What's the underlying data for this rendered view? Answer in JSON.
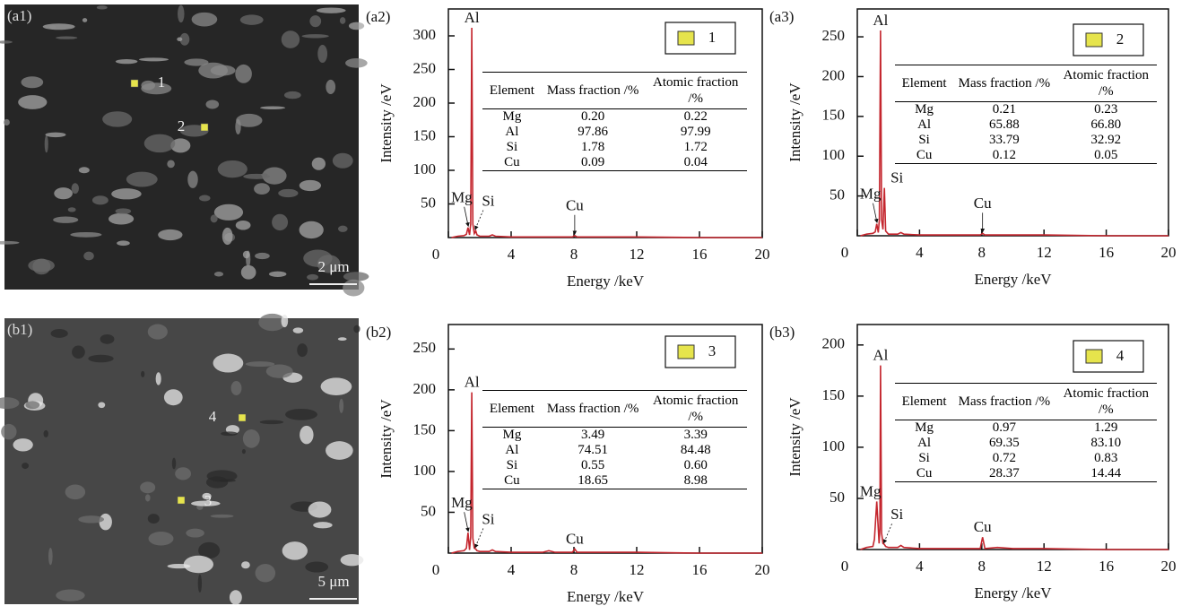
{
  "images": [
    {
      "label": "(a1)",
      "scale_bar": "2 μm",
      "points": [
        "1",
        "2"
      ]
    },
    {
      "label": "(b1)",
      "scale_bar": "5 μm",
      "points": [
        "4",
        "3"
      ]
    }
  ],
  "chart_data": [
    {
      "type": "line",
      "label": "(a2)",
      "xlabel": "Energy /keV",
      "ylabel": "Intensity /eV",
      "xlim": [
        0,
        20
      ],
      "xticks": [
        0,
        4,
        8,
        12,
        16,
        20
      ],
      "ylim": [
        0,
        340
      ],
      "yticks": [
        50,
        100,
        150,
        200,
        250,
        300
      ],
      "series": [
        {
          "name": "1",
          "color": "#c4262e",
          "marker_color": "#e6e44c",
          "x": [
            0.2,
            0.6,
            1.0,
            1.15,
            1.25,
            1.35,
            1.42,
            1.49,
            1.56,
            1.65,
            1.74,
            1.82,
            2.0,
            2.6,
            2.8,
            3.0,
            4,
            7.9,
            8.05,
            8.2,
            12,
            16,
            20
          ],
          "values": [
            0,
            2,
            3,
            5,
            15,
            4,
            20,
            312,
            20,
            6,
            10,
            4,
            2,
            2,
            4,
            2,
            1,
            1,
            3,
            1,
            1,
            0,
            0
          ]
        }
      ],
      "annotations": [
        {
          "text": "Al",
          "x": 1.49,
          "arrow": false
        },
        {
          "text": "Mg",
          "x": 1.25,
          "arrow": true
        },
        {
          "text": "Si",
          "x": 1.74,
          "arrow": true
        },
        {
          "text": "Cu",
          "x": 8.05,
          "arrow": true
        }
      ],
      "table": {
        "header": [
          "Element",
          "Mass fraction /%",
          "Atomic fraction /%"
        ],
        "rows": [
          [
            "Mg",
            "0.20",
            "0.22"
          ],
          [
            "Al",
            "97.86",
            "97.99"
          ],
          [
            "Si",
            "1.78",
            "1.72"
          ],
          [
            "Cu",
            "0.09",
            "0.04"
          ]
        ]
      }
    },
    {
      "type": "line",
      "label": "(a3)",
      "xlabel": "Energy /keV",
      "ylabel": "Intensity /eV",
      "xlim": [
        0,
        20
      ],
      "xticks": [
        0,
        4,
        8,
        12,
        16,
        20
      ],
      "ylim": [
        0,
        285
      ],
      "yticks": [
        50,
        100,
        150,
        200,
        250
      ],
      "series": [
        {
          "name": "2",
          "color": "#c4262e",
          "marker_color": "#e6e44c",
          "x": [
            0.2,
            0.6,
            1.0,
            1.15,
            1.25,
            1.35,
            1.42,
            1.49,
            1.56,
            1.65,
            1.74,
            1.82,
            2.0,
            2.6,
            2.8,
            3.0,
            4,
            7.9,
            8.05,
            8.2,
            12,
            16,
            20
          ],
          "values": [
            0,
            2,
            3,
            5,
            15,
            4,
            20,
            258,
            20,
            8,
            60,
            6,
            2,
            2,
            4,
            2,
            1,
            1,
            3,
            1,
            1,
            0,
            0
          ]
        }
      ],
      "annotations": [
        {
          "text": "Al",
          "x": 1.49,
          "arrow": false
        },
        {
          "text": "Mg",
          "x": 1.25,
          "arrow": true
        },
        {
          "text": "Si",
          "x": 1.74,
          "arrow": false
        },
        {
          "text": "Cu",
          "x": 8.05,
          "arrow": true
        }
      ],
      "table": {
        "header": [
          "Element",
          "Mass fraction /%",
          "Atomic fraction /%"
        ],
        "rows": [
          [
            "Mg",
            "0.21",
            "0.23"
          ],
          [
            "Al",
            "65.88",
            "66.80"
          ],
          [
            "Si",
            "33.79",
            "32.92"
          ],
          [
            "Cu",
            "0.12",
            "0.05"
          ]
        ]
      }
    },
    {
      "type": "line",
      "label": "(b2)",
      "xlabel": "Energy /keV",
      "ylabel": "Intensity /eV",
      "xlim": [
        0,
        20
      ],
      "xticks": [
        0,
        4,
        8,
        12,
        16,
        20
      ],
      "ylim": [
        0,
        280
      ],
      "yticks": [
        50,
        100,
        150,
        200,
        250
      ],
      "series": [
        {
          "name": "3",
          "color": "#c4262e",
          "marker_color": "#e6e44c",
          "x": [
            0.2,
            0.6,
            1.0,
            1.15,
            1.25,
            1.35,
            1.42,
            1.49,
            1.56,
            1.65,
            1.74,
            1.82,
            2.0,
            2.6,
            2.8,
            3.0,
            4,
            6.0,
            6.4,
            6.8,
            7.9,
            8.05,
            8.2,
            12,
            16,
            20
          ],
          "values": [
            0,
            2,
            3,
            6,
            25,
            4,
            20,
            197,
            18,
            6,
            5,
            3,
            2,
            2,
            4,
            2,
            1,
            1,
            3,
            1,
            1,
            5,
            1,
            1,
            0,
            0
          ]
        }
      ],
      "annotations": [
        {
          "text": "Al",
          "x": 1.49,
          "arrow": false
        },
        {
          "text": "Mg",
          "x": 1.25,
          "arrow": true
        },
        {
          "text": "Si",
          "x": 1.74,
          "arrow": true
        },
        {
          "text": "Cu",
          "x": 8.05,
          "arrow": false
        }
      ],
      "table": {
        "header": [
          "Element",
          "Mass fraction /%",
          "Atomic fraction /%"
        ],
        "rows": [
          [
            "Mg",
            "3.49",
            "3.39"
          ],
          [
            "Al",
            "74.51",
            "84.48"
          ],
          [
            "Si",
            "0.55",
            "0.60"
          ],
          [
            "Cu",
            "18.65",
            "8.98"
          ]
        ]
      }
    },
    {
      "type": "line",
      "label": "(b3)",
      "xlabel": "Energy /keV",
      "ylabel": "Intensity /eV",
      "xlim": [
        0,
        20
      ],
      "xticks": [
        0,
        4,
        8,
        12,
        16,
        20
      ],
      "ylim": [
        0,
        220
      ],
      "yticks": [
        50,
        100,
        150,
        200
      ],
      "series": [
        {
          "name": "4",
          "color": "#c4262e",
          "marker_color": "#e6e44c",
          "x": [
            0.2,
            0.6,
            1.0,
            1.1,
            1.25,
            1.4,
            1.45,
            1.49,
            1.56,
            1.65,
            1.74,
            1.82,
            2.0,
            2.6,
            2.8,
            3.0,
            4,
            7.9,
            8.05,
            8.2,
            9.0,
            10.0,
            12,
            16,
            20
          ],
          "values": [
            0,
            2,
            3,
            10,
            47,
            6,
            20,
            180,
            16,
            6,
            5,
            3,
            2,
            2,
            4,
            2,
            1,
            1,
            12,
            1,
            2,
            1,
            1,
            0,
            0
          ]
        }
      ],
      "annotations": [
        {
          "text": "Al",
          "x": 1.49,
          "arrow": false
        },
        {
          "text": "Mg",
          "x": 1.25,
          "arrow": false
        },
        {
          "text": "Si",
          "x": 1.74,
          "arrow": true
        },
        {
          "text": "Cu",
          "x": 8.05,
          "arrow": false
        }
      ],
      "table": {
        "header": [
          "Element",
          "Mass fraction /%",
          "Atomic fraction /%"
        ],
        "rows": [
          [
            "Mg",
            "0.97",
            "1.29"
          ],
          [
            "Al",
            "69.35",
            "83.10"
          ],
          [
            "Si",
            "0.72",
            "0.83"
          ],
          [
            "Cu",
            "28.37",
            "14.44"
          ]
        ]
      }
    }
  ]
}
